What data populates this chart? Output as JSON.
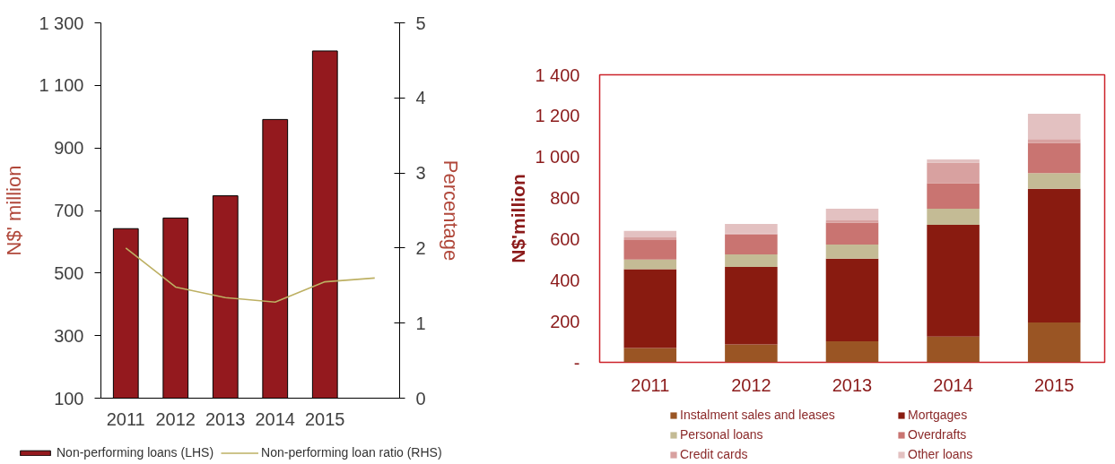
{
  "chart_data": [
    {
      "type": "bar",
      "categories": [
        "2011",
        "2012",
        "2013",
        "2014",
        "2015",
        null
      ],
      "ylabel": "N$' million",
      "y2label": "Percentage",
      "ylim": [
        100,
        1300
      ],
      "yticks": [
        100,
        300,
        500,
        700,
        900,
        {
          "value": 1100,
          "label": "1 100"
        },
        {
          "value": 1300,
          "label": "1 300"
        }
      ],
      "y2lim": [
        0,
        5
      ],
      "y2ticks": [
        0,
        1,
        2,
        3,
        4,
        5
      ],
      "legend": "bottom",
      "series": [
        {
          "name": "Non-performing loans (LHS)",
          "color": "#94191e",
          "values": [
            642,
            676,
            747,
            991,
            1210,
            null
          ]
        },
        {
          "name": "Non-performing loan ratio (RHS)",
          "type": "line",
          "axis": "y2",
          "color": "#bdb063",
          "values": [
            2.0,
            1.48,
            1.34,
            1.28,
            1.55,
            1.6
          ]
        }
      ]
    },
    {
      "type": "bar",
      "stacked": true,
      "categories": [
        "2011",
        "2012",
        "2013",
        "2014",
        "2015"
      ],
      "ylabel": "N$'million",
      "ylim": [
        0,
        1400
      ],
      "yticks": [
        {
          "value": 0,
          "label": "-"
        },
        200,
        400,
        600,
        800,
        {
          "value": 1000,
          "label": "1 000"
        },
        {
          "value": 1200,
          "label": "1 200"
        },
        {
          "value": 1400,
          "label": "1 400"
        }
      ],
      "legend": "bottom",
      "series": [
        {
          "name": "Instalment sales and leases",
          "color": "#9a5524",
          "values": [
            70,
            87,
            103,
            125,
            194
          ]
        },
        {
          "name": "Mortgages",
          "color": "#891b10",
          "values": [
            384,
            377,
            402,
            544,
            651
          ]
        },
        {
          "name": "Personal loans",
          "color": "#c4bb95",
          "values": [
            46,
            62,
            69,
            79,
            76
          ]
        },
        {
          "name": "Overdrafts",
          "color": "#c97471",
          "values": [
            95,
            97,
            106,
            124,
            147
          ]
        },
        {
          "name": "Credit cards",
          "color": "#d8a1a0",
          "values": [
            13,
            4,
            11,
            101,
            19
          ]
        },
        {
          "name": "Other loans",
          "color": "#e3c1c1",
          "values": [
            32,
            47,
            57,
            15,
            123
          ]
        }
      ]
    }
  ]
}
